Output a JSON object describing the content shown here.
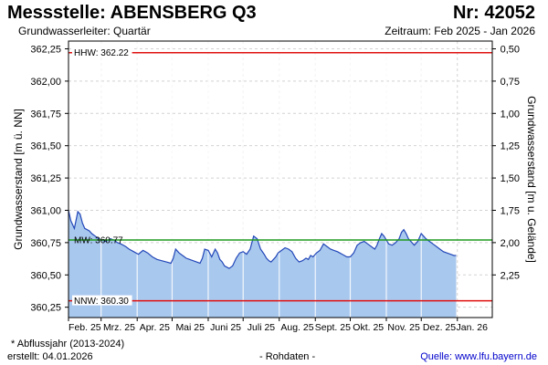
{
  "header": {
    "title": "Messstelle: ABENSBERG Q3",
    "number": "Nr: 42052",
    "aquifer": "Grundwasserleiter: Quartär",
    "period": "Zeitraum: Feb 2025 - Jan 2026"
  },
  "footer": {
    "note": "* Abflussjahr (2013-2024)",
    "created_label": "erstellt:",
    "created_date": "04.01.2026",
    "raw_data": "- Rohdaten -",
    "source_label": "Quelle:",
    "source_url": "www.lfu.bayern.de"
  },
  "colors": {
    "area_fill": "#a9c8ee",
    "line": "#2247b8",
    "hhw": "#e01010",
    "mw": "#1f9a1f",
    "nnw": "#e01010",
    "grid": "#d2d2d2"
  },
  "chart_data": {
    "type": "area",
    "title": "",
    "ylabel": "Grundwasserstand [m ü. NN]",
    "ylabel_right": "Grundwasserstand [m u. Gelände]",
    "ylim": [
      360.17,
      362.31
    ],
    "yticks": [
      "360,25",
      "360,50",
      "360,75",
      "361,00",
      "361,25",
      "361,50",
      "361,75",
      "362,00",
      "362,25"
    ],
    "yticks_right": [
      "0,50",
      "0,75",
      "1,00",
      "1,25",
      "1,50",
      "1,75",
      "2,00",
      "2,25"
    ],
    "xticks": [
      "Feb. 25",
      "Mrz. 25",
      "Apr. 25",
      "Mai 25",
      "Juni 25",
      "Juli 25",
      "Aug. 25",
      "Sept. 25",
      "Okt. 25",
      "Nov. 25",
      "Dez. 25",
      "Jan. 26"
    ],
    "reference_lines": [
      {
        "name": "HHW",
        "label": "HHW: 362.22",
        "value": 362.22
      },
      {
        "name": "MW",
        "label": "MW: 360.77",
        "value": 360.77
      },
      {
        "name": "NNW",
        "label": "NNW: 360.30",
        "value": 360.3
      }
    ],
    "series": [
      {
        "x": [
          "2025-02-01",
          "2025-02-03",
          "2025-02-05",
          "2025-02-06",
          "2025-02-07",
          "2025-02-09",
          "2025-02-11",
          "2025-02-13",
          "2025-02-15",
          "2025-02-17",
          "2025-02-19",
          "2025-02-21",
          "2025-02-24",
          "2025-02-27",
          "2025-03-01",
          "2025-03-05",
          "2025-03-09",
          "2025-03-12",
          "2025-03-15",
          "2025-03-18",
          "2025-03-22",
          "2025-03-25",
          "2025-03-29",
          "2025-04-02",
          "2025-04-06",
          "2025-04-10",
          "2025-04-14",
          "2025-04-18",
          "2025-04-22",
          "2025-04-26",
          "2025-04-30",
          "2025-05-02",
          "2025-05-04",
          "2025-05-07",
          "2025-05-10",
          "2025-05-13",
          "2025-05-16",
          "2025-05-19",
          "2025-05-22",
          "2025-05-25",
          "2025-05-27",
          "2025-05-29",
          "2025-06-01",
          "2025-06-04",
          "2025-06-07",
          "2025-06-09",
          "2025-06-11",
          "2025-06-13",
          "2025-06-15",
          "2025-06-17",
          "2025-06-19",
          "2025-06-22",
          "2025-06-25",
          "2025-06-28",
          "2025-07-01",
          "2025-07-04",
          "2025-07-07",
          "2025-07-10",
          "2025-07-13",
          "2025-07-16",
          "2025-07-19",
          "2025-07-21",
          "2025-07-23",
          "2025-07-25",
          "2025-07-27",
          "2025-07-29",
          "2025-07-31",
          "2025-08-03",
          "2025-08-06",
          "2025-08-09",
          "2025-08-12",
          "2025-08-15",
          "2025-08-18",
          "2025-08-21",
          "2025-08-24",
          "2025-08-26",
          "2025-08-28",
          "2025-08-30",
          "2025-09-02",
          "2025-09-05",
          "2025-09-08",
          "2025-09-11",
          "2025-09-14",
          "2025-09-17",
          "2025-09-20",
          "2025-09-22",
          "2025-09-24",
          "2025-09-26",
          "2025-09-28",
          "2025-10-01",
          "2025-10-04",
          "2025-10-07",
          "2025-10-10",
          "2025-10-13",
          "2025-10-16",
          "2025-10-19",
          "2025-10-22",
          "2025-10-24",
          "2025-10-26",
          "2025-10-28",
          "2025-10-30",
          "2025-11-01",
          "2025-11-03",
          "2025-11-06",
          "2025-11-09",
          "2025-11-12",
          "2025-11-14",
          "2025-11-16",
          "2025-11-18",
          "2025-11-20",
          "2025-11-22",
          "2025-11-25",
          "2025-11-28",
          "2025-12-01",
          "2025-12-03",
          "2025-12-05",
          "2025-12-08",
          "2025-12-11",
          "2025-12-14",
          "2025-12-17",
          "2025-12-20",
          "2025-12-23",
          "2025-12-26",
          "2025-12-29",
          "2025-12-31"
        ],
        "values": [
          361.0,
          360.92,
          360.88,
          360.86,
          360.9,
          360.99,
          360.97,
          360.9,
          360.86,
          360.85,
          360.84,
          360.82,
          360.8,
          360.78,
          360.77,
          360.76,
          360.78,
          360.77,
          360.75,
          360.74,
          360.72,
          360.7,
          360.68,
          360.66,
          360.69,
          360.67,
          360.64,
          360.62,
          360.61,
          360.6,
          360.59,
          360.63,
          360.7,
          360.67,
          360.65,
          360.63,
          360.62,
          360.61,
          360.6,
          360.59,
          360.63,
          360.7,
          360.69,
          360.64,
          360.7,
          360.67,
          360.62,
          360.6,
          360.57,
          360.56,
          360.55,
          360.57,
          360.63,
          360.67,
          360.68,
          360.66,
          360.7,
          360.8,
          360.78,
          360.7,
          360.66,
          360.63,
          360.61,
          360.6,
          360.62,
          360.64,
          360.67,
          360.69,
          360.71,
          360.7,
          360.68,
          360.63,
          360.6,
          360.61,
          360.63,
          360.62,
          360.65,
          360.64,
          360.67,
          360.69,
          360.74,
          360.72,
          360.7,
          360.69,
          360.68,
          360.67,
          360.66,
          360.65,
          360.64,
          360.64,
          360.67,
          360.73,
          360.75,
          360.76,
          360.74,
          360.72,
          360.7,
          360.73,
          360.78,
          360.82,
          360.8,
          360.77,
          360.74,
          360.73,
          360.75,
          360.78,
          360.83,
          360.85,
          360.82,
          360.78,
          360.76,
          360.73,
          360.76,
          360.82,
          360.8,
          360.78,
          360.76,
          360.74,
          360.72,
          360.7,
          360.68,
          360.67,
          360.66,
          360.65,
          360.65
        ]
      }
    ]
  }
}
